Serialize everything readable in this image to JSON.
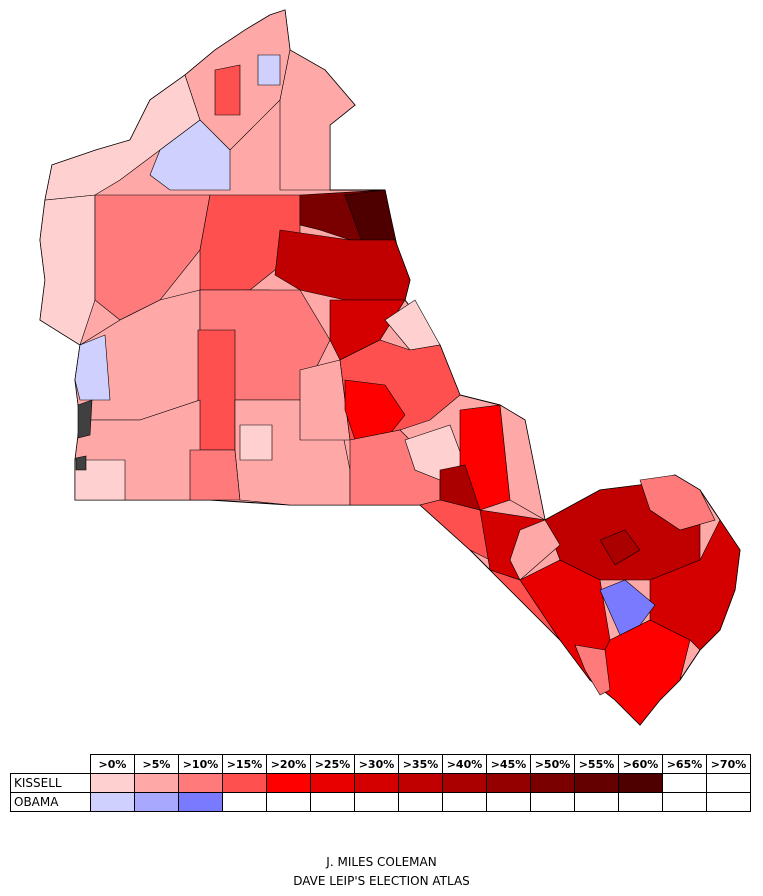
{
  "legend": {
    "thresholds": [
      ">0%",
      ">5%",
      ">10%",
      ">15%",
      ">20%",
      ">25%",
      ">30%",
      ">35%",
      ">40%",
      ">45%",
      ">50%",
      ">55%",
      ">60%",
      ">65%",
      ">70%"
    ],
    "rows": [
      {
        "label": "KISSELL",
        "colors": [
          "#ffd0d0",
          "#ffa8a8",
          "#ff7a7a",
          "#ff5050",
          "#ff0000",
          "#e80000",
          "#d40000",
          "#c00000",
          "#aa0000",
          "#940000",
          "#7a0000",
          "#640000",
          "#4e0000",
          "",
          ""
        ]
      },
      {
        "label": "OBAMA",
        "colors": [
          "#d0d0ff",
          "#a8a8ff",
          "#7a7aff",
          "",
          "",
          "",
          "",
          "",
          "",
          "",
          "",
          "",
          "",
          "",
          ""
        ]
      }
    ]
  },
  "credits": {
    "author": "J. MILES COLEMAN",
    "source": "DAVE LEIP'S ELECTION ATLAS"
  },
  "colors": {
    "tie": "#404040",
    "outline": "#000000"
  }
}
